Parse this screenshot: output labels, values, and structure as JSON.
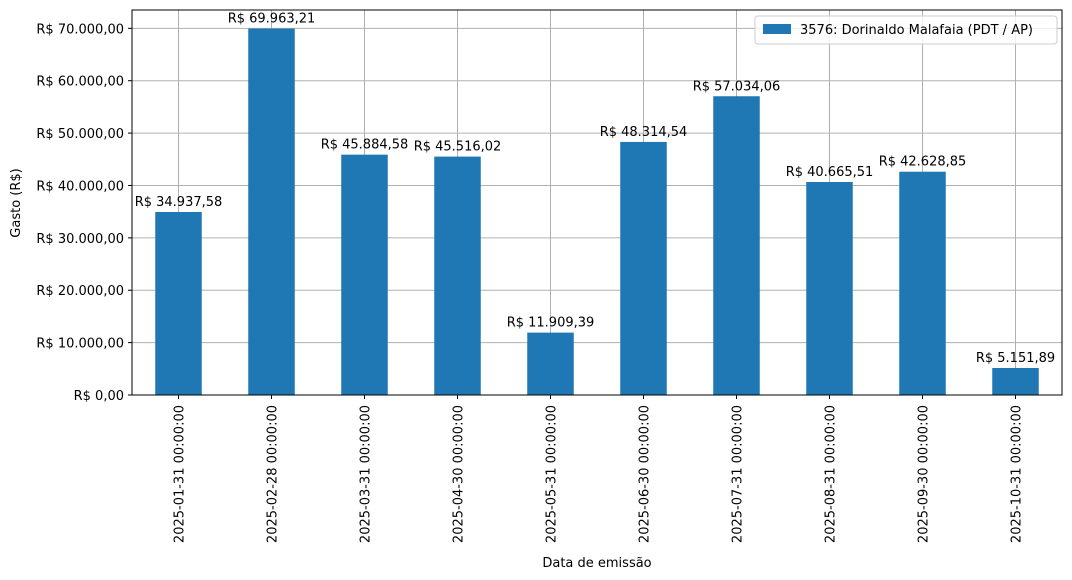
{
  "chart_data": {
    "type": "bar",
    "xlabel": "Data de emissão",
    "ylabel": "Gasto (R$)",
    "ylim": [
      0,
      73500
    ],
    "grid": true,
    "legend_position": "top-right",
    "yticks": [
      0,
      10000,
      20000,
      30000,
      40000,
      50000,
      60000,
      70000
    ],
    "ytick_labels": [
      "R$ 0,00",
      "R$ 10.000,00",
      "R$ 20.000,00",
      "R$ 30.000,00",
      "R$ 40.000,00",
      "R$ 50.000,00",
      "R$ 60.000,00",
      "R$ 70.000,00"
    ],
    "categories": [
      "2025-01-31 00:00:00",
      "2025-02-28 00:00:00",
      "2025-03-31 00:00:00",
      "2025-04-30 00:00:00",
      "2025-05-31 00:00:00",
      "2025-06-30 00:00:00",
      "2025-07-31 00:00:00",
      "2025-08-31 00:00:00",
      "2025-09-30 00:00:00",
      "2025-10-31 00:00:00"
    ],
    "series": [
      {
        "name": "3576: Dorinaldo Malafaia (PDT / AP)",
        "color": "#1f77b4",
        "values": [
          34937.58,
          69963.21,
          45884.58,
          45516.02,
          11909.39,
          48314.54,
          57034.06,
          40665.51,
          42628.85,
          5151.89
        ],
        "labels": [
          "R$ 34.937,58",
          "R$ 69.963,21",
          "R$ 45.884,58",
          "R$ 45.516,02",
          "R$ 11.909,39",
          "R$ 48.314,54",
          "R$ 57.034,06",
          "R$ 40.665,51",
          "R$ 42.628,85",
          "R$ 5.151,89"
        ]
      }
    ]
  }
}
